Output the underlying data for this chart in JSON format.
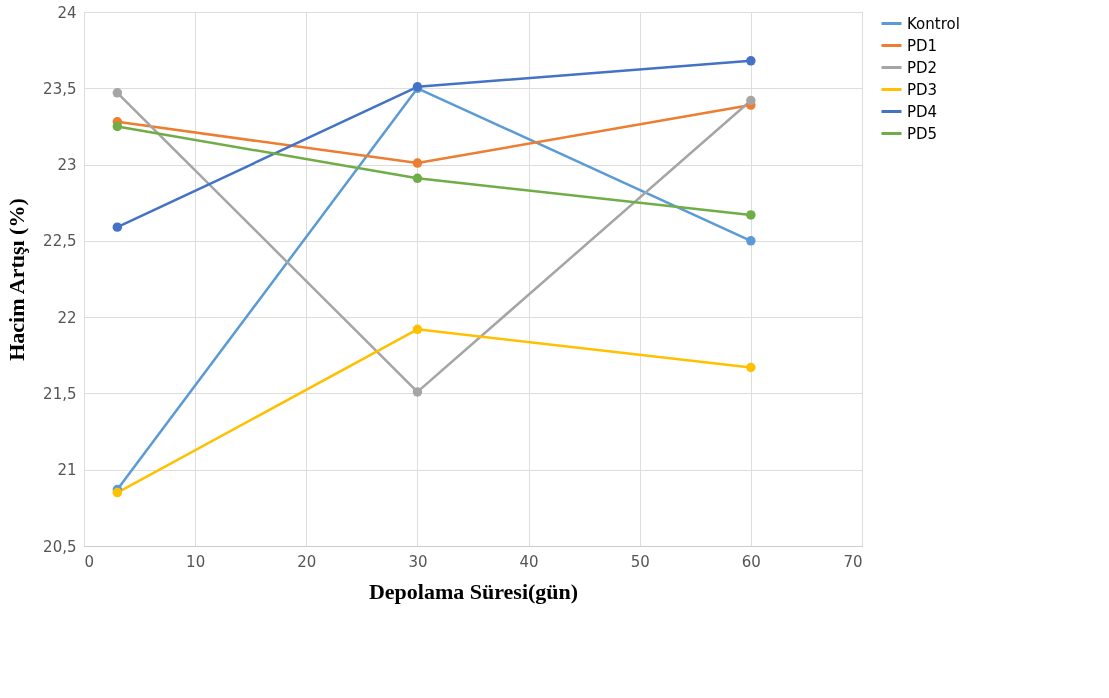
{
  "chart_data": {
    "type": "line",
    "xlabel": "Depolama Süresi(gün)",
    "ylabel": "Hacim Artışı (%)",
    "x": [
      3,
      30,
      60
    ],
    "series": [
      {
        "name": "Kontrol",
        "color": "#5b9bd5",
        "values": [
          20.87,
          23.5,
          22.5
        ]
      },
      {
        "name": "PD1",
        "color": "#ed7d31",
        "values": [
          23.28,
          23.01,
          23.39
        ]
      },
      {
        "name": "PD2",
        "color": "#a5a5a5",
        "values": [
          23.47,
          21.51,
          23.42
        ]
      },
      {
        "name": "PD3",
        "color": "#ffc000",
        "values": [
          20.85,
          21.92,
          21.67
        ]
      },
      {
        "name": "PD4",
        "color": "#4472c4",
        "values": [
          22.59,
          23.51,
          23.68
        ]
      },
      {
        "name": "PD5",
        "color": "#70ad47",
        "values": [
          23.25,
          22.91,
          22.67
        ]
      }
    ],
    "xlim": [
      0,
      70
    ],
    "xticks": [
      0,
      10,
      20,
      30,
      40,
      50,
      60,
      70
    ],
    "ylim": [
      20.5,
      24
    ],
    "yticks": [
      {
        "value": 20.5,
        "label": "20,5"
      },
      21,
      {
        "value": 21.5,
        "label": "21,5"
      },
      22,
      {
        "value": 22.5,
        "label": "22,5"
      },
      23,
      {
        "value": 23.5,
        "label": "23,5"
      },
      24
    ],
    "grid": true,
    "legend": "right",
    "marker": "circle",
    "line_style": "solid"
  }
}
